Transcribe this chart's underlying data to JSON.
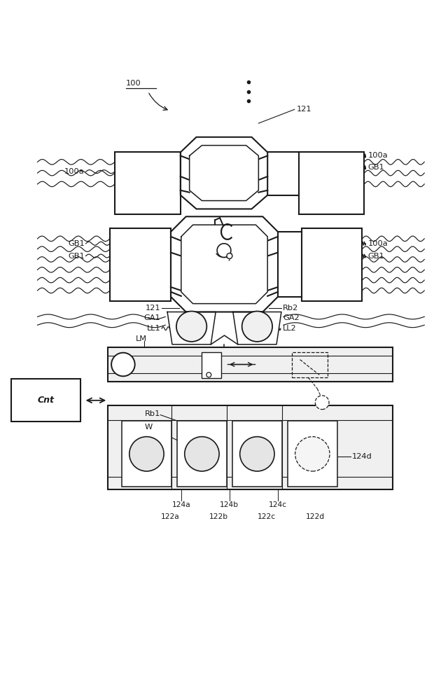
{
  "bg_color": "#ffffff",
  "lc": "#1a1a1a",
  "fig_w": 6.4,
  "fig_h": 9.64,
  "dpi": 100,
  "xlim": [
    0,
    6.4
  ],
  "ylim": [
    0,
    9.64
  ]
}
